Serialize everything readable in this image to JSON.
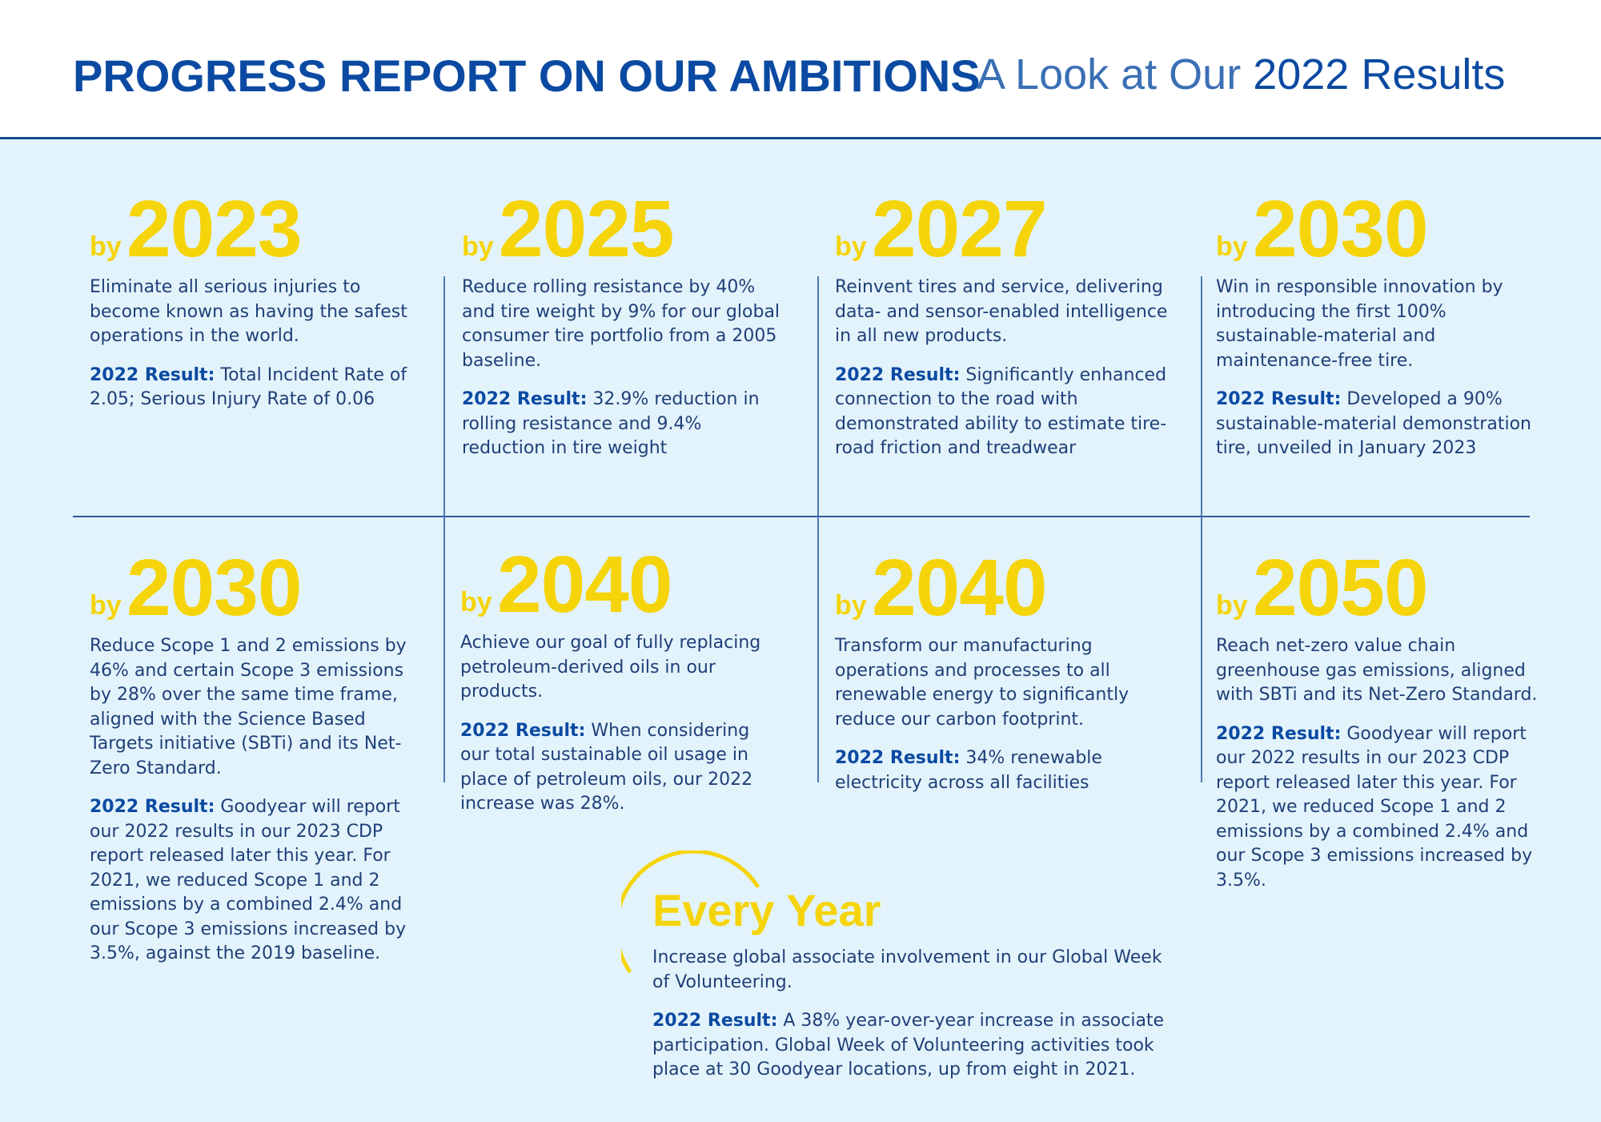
{
  "header": {
    "title": "PROGRESS REPORT ON OUR AMBITIONS",
    "subtitle_lead": "A Look at Our ",
    "subtitle_year": "2022 Results"
  },
  "result_label": "2022 Result:",
  "by_label": "by",
  "colors": {
    "accent_yellow": "#f5d40a",
    "brand_blue": "#0b4aa2",
    "panel_bg": "#e3f3fb"
  },
  "ambitions": [
    {
      "year": "2023",
      "goal": "Eliminate all serious injuries to become known as having the safest operations in the world.",
      "result": "Total Incident Rate of 2.05; Serious Injury Rate of 0.06"
    },
    {
      "year": "2025",
      "goal": "Reduce rolling resistance by 40% and tire weight by 9% for our global consumer tire portfolio from a 2005 baseline.",
      "result": "32.9% reduction in rolling resistance and 9.4% reduction in tire weight"
    },
    {
      "year": "2027",
      "goal": "Reinvent tires and service, delivering data- and sensor-enabled intelligence in all new products.",
      "result": "Significantly enhanced connection to the road with demonstrated ability to estimate tire-road friction and treadwear"
    },
    {
      "year": "2030",
      "goal": "Win in responsible innovation by introducing the first 100% sustainable-material and maintenance-free tire.",
      "result": "Developed a 90% sustainable-material demonstration tire, unveiled in January 2023"
    },
    {
      "year": "2030",
      "goal": "Reduce Scope 1 and 2 emissions by 46% and certain Scope 3 emissions by 28% over the same time frame, aligned with the Science Based Targets initiative (SBTi) and its Net-Zero Standard.",
      "result": "Goodyear will report our 2022 results in our 2023 CDP report released later this year. For 2021, we reduced Scope 1 and 2 emissions by a combined 2.4% and our Scope 3 emissions increased by 3.5%, against the 2019 baseline."
    },
    {
      "year": "2040",
      "goal": "Achieve our goal of fully replacing petroleum-derived oils in our products.",
      "result": "When considering our total sustainable oil usage in place of petroleum oils, our 2022 increase was 28%."
    },
    {
      "year": "2040",
      "goal": "Transform our manufacturing operations and processes to all renewable energy to significantly reduce our carbon footprint.",
      "result": "34% renewable electricity across all facilities"
    },
    {
      "year": "2050",
      "goal": "Reach net-zero value chain greenhouse gas emissions, aligned with SBTi and its Net-Zero Standard.",
      "result": "Goodyear will report our 2022 results in our 2023 CDP report released later this year. For 2021, we reduced Scope 1 and 2 emissions by a combined 2.4% and our Scope 3 emissions increased by 3.5%."
    }
  ],
  "every_year": {
    "title": "Every Year",
    "goal": "Increase global associate involvement in our Global Week of Volunteering.",
    "result": "A 38% year-over-year increase in associate participation. Global Week of Volunteering activities took place at 30 Goodyear locations, up from eight in 2021."
  }
}
